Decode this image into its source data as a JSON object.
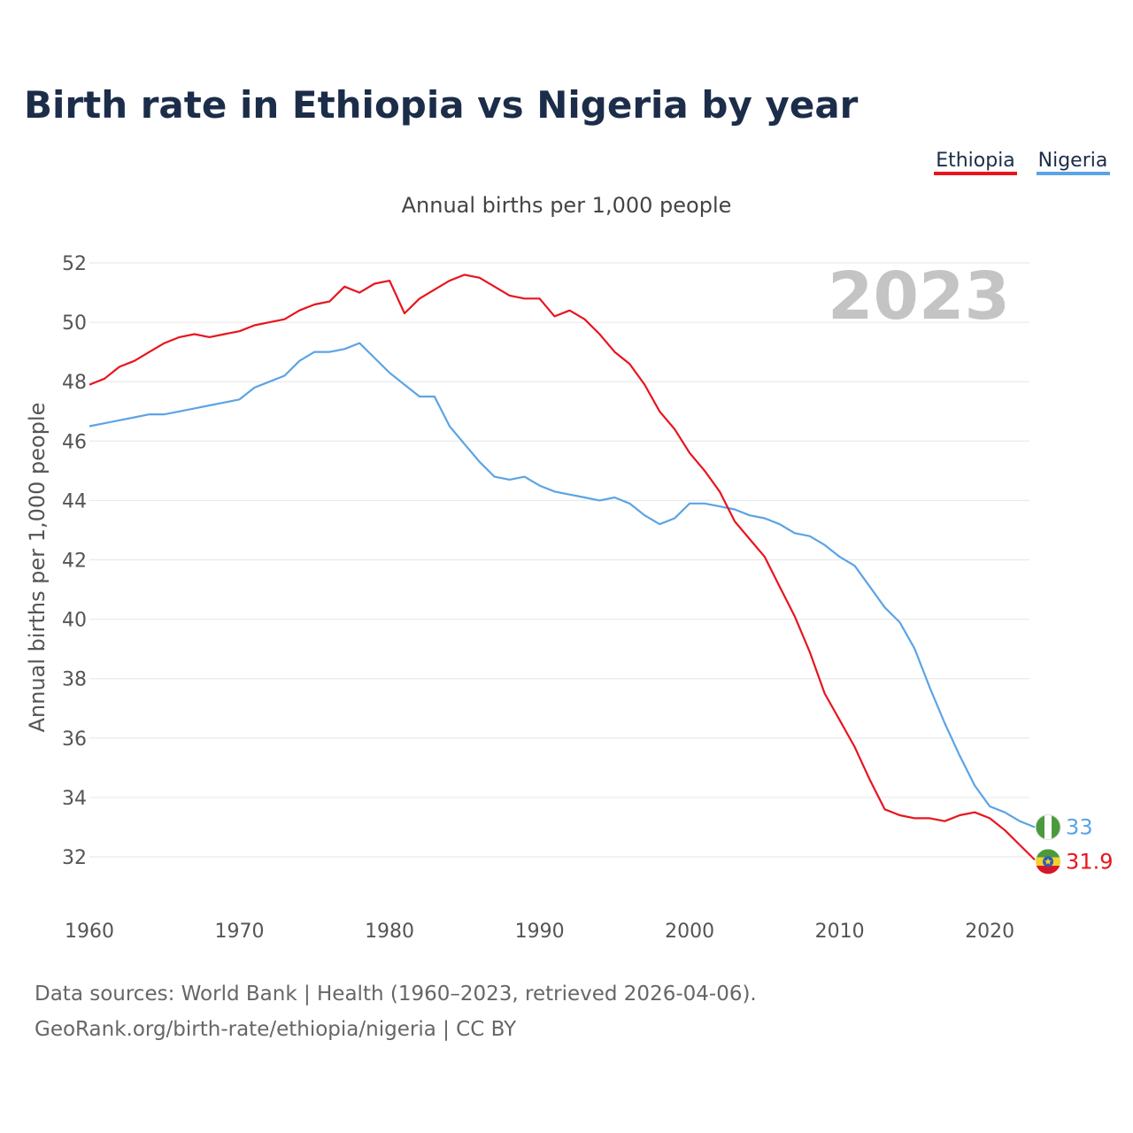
{
  "chart_data": {
    "type": "line",
    "title": "Birth rate in Ethiopia vs Nigeria by year",
    "subtitle": "Annual births per 1,000 people",
    "ylabel": "Annual births per 1,000 people",
    "xlabel": "",
    "overlay_year": "2023",
    "xlim": [
      1960,
      2023
    ],
    "ylim": [
      30.5,
      52.5
    ],
    "x_ticks": [
      1960,
      1970,
      1980,
      1990,
      2000,
      2010,
      2020
    ],
    "y_ticks": [
      32,
      34,
      36,
      38,
      40,
      42,
      44,
      46,
      48,
      50,
      52
    ],
    "x": [
      1960,
      1961,
      1962,
      1963,
      1964,
      1965,
      1966,
      1967,
      1968,
      1969,
      1970,
      1971,
      1972,
      1973,
      1974,
      1975,
      1976,
      1977,
      1978,
      1979,
      1980,
      1981,
      1982,
      1983,
      1984,
      1985,
      1986,
      1987,
      1988,
      1989,
      1990,
      1991,
      1992,
      1993,
      1994,
      1995,
      1996,
      1997,
      1998,
      1999,
      2000,
      2001,
      2002,
      2003,
      2004,
      2005,
      2006,
      2007,
      2008,
      2009,
      2010,
      2011,
      2012,
      2013,
      2014,
      2015,
      2016,
      2017,
      2018,
      2019,
      2020,
      2021,
      2022,
      2023
    ],
    "series": [
      {
        "name": "Ethiopia",
        "color": "#e8141e",
        "end_label": "31.9",
        "values": [
          47.9,
          48.1,
          48.5,
          48.7,
          49.0,
          49.3,
          49.5,
          49.6,
          49.5,
          49.6,
          49.7,
          49.9,
          50.0,
          50.1,
          50.4,
          50.6,
          50.7,
          51.2,
          51.0,
          51.3,
          51.4,
          50.3,
          50.8,
          51.1,
          51.4,
          51.6,
          51.5,
          51.2,
          50.9,
          50.8,
          50.8,
          50.2,
          50.4,
          50.1,
          49.6,
          49.0,
          48.6,
          47.9,
          47.0,
          46.4,
          45.6,
          45.0,
          44.3,
          43.3,
          42.7,
          42.1,
          41.1,
          40.1,
          38.9,
          37.5,
          36.6,
          35.7,
          34.6,
          33.6,
          33.4,
          33.3,
          33.3,
          33.2,
          33.4,
          33.5,
          33.3,
          32.9,
          32.4,
          31.9
        ]
      },
      {
        "name": "Nigeria",
        "color": "#5ba4e5",
        "end_label": "33",
        "values": [
          46.5,
          46.6,
          46.7,
          46.8,
          46.9,
          46.9,
          47.0,
          47.1,
          47.2,
          47.3,
          47.4,
          47.8,
          48.0,
          48.2,
          48.7,
          49.0,
          49.0,
          49.1,
          49.3,
          48.8,
          48.3,
          47.9,
          47.5,
          47.5,
          46.5,
          45.9,
          45.3,
          44.8,
          44.7,
          44.8,
          44.5,
          44.3,
          44.2,
          44.1,
          44.0,
          44.1,
          43.9,
          43.5,
          43.2,
          43.4,
          43.9,
          43.9,
          43.8,
          43.7,
          43.5,
          43.4,
          43.2,
          42.9,
          42.8,
          42.5,
          42.1,
          41.8,
          41.1,
          40.4,
          39.9,
          39.0,
          37.7,
          36.5,
          35.4,
          34.4,
          33.7,
          33.5,
          33.2,
          33.0
        ]
      }
    ]
  },
  "legend": [
    {
      "label": "Ethiopia",
      "color": "#e8141e"
    },
    {
      "label": "Nigeria",
      "color": "#5ba4e5"
    }
  ],
  "footer": {
    "line1": "Data sources: World Bank | Health (1960–2023, retrieved 2026-04-06).",
    "line2": "GeoRank.org/birth-rate/ethiopia/nigeria | CC BY"
  }
}
